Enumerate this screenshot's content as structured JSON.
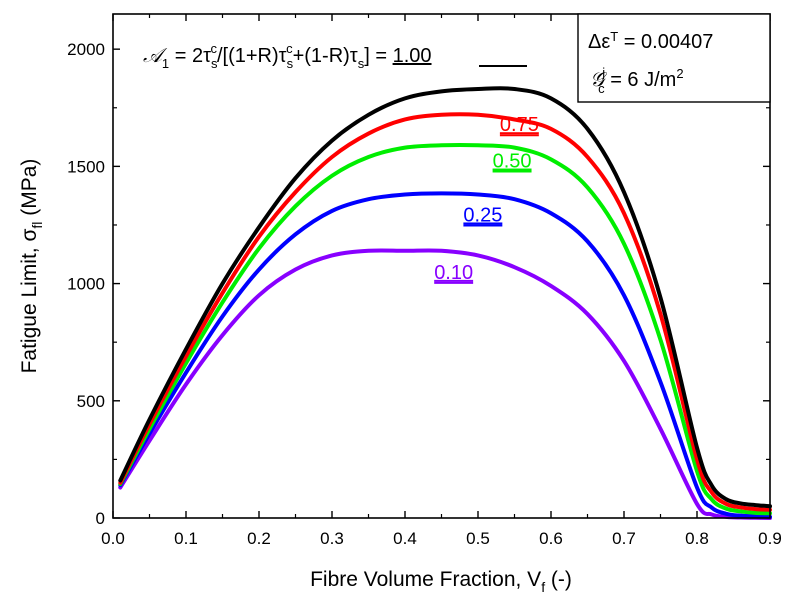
{
  "chart_data": {
    "type": "line",
    "xlabel": "Fibre Volume Fraction, V",
    "xlabel_sub": "f",
    "xlabel_suffix": " (-)",
    "ylabel": "Fatigue Limit, σ",
    "ylabel_sub": "fl",
    "ylabel_suffix": " (MPa)",
    "xlim": [
      0.0,
      0.9
    ],
    "ylim": [
      0,
      2150
    ],
    "xticks": [
      0.0,
      0.1,
      0.2,
      0.3,
      0.4,
      0.5,
      0.6,
      0.7,
      0.8,
      0.9
    ],
    "yticks": [
      0,
      500,
      1000,
      1500,
      2000
    ],
    "grid": false,
    "equation": {
      "lhs": "𝒜",
      "lhs_sub": "1",
      "p1": " = 2τ",
      "s1": "s",
      "c1": "c",
      "p2": "/[(1+R)τ",
      "s2": "s",
      "c2": "c",
      "p3": "+(1-R)τ",
      "s3": "s",
      "p4": "] = ",
      "value": "1.00"
    },
    "params": {
      "line1": "Δε",
      "line1_sup": "T",
      "line1_value": " = 0.00407",
      "line2": "𝒢",
      "line2_sup": "j",
      "line2_sub": "c",
      "line2_value": " = 6 J/m",
      "line2_exp": "2"
    },
    "x": [
      0.01,
      0.05,
      0.1,
      0.15,
      0.2,
      0.25,
      0.3,
      0.35,
      0.4,
      0.45,
      0.5,
      0.55,
      0.6,
      0.65,
      0.7,
      0.75,
      0.8,
      0.82,
      0.84,
      0.86,
      0.88,
      0.9
    ],
    "series": [
      {
        "name": "1.00",
        "color": "#000000",
        "label_pos": [
          0.37,
          1960
        ],
        "values": [
          160,
          420,
          720,
          1000,
          1240,
          1450,
          1610,
          1720,
          1790,
          1820,
          1830,
          1830,
          1790,
          1660,
          1390,
          940,
          300,
          140,
          80,
          62,
          55,
          50
        ]
      },
      {
        "name": "0.75",
        "color": "#ff0000",
        "label_pos": [
          0.53,
          1650
        ],
        "values": [
          150,
          400,
          690,
          960,
          1200,
          1390,
          1540,
          1640,
          1700,
          1720,
          1720,
          1700,
          1660,
          1540,
          1300,
          870,
          250,
          110,
          60,
          45,
          38,
          35
        ]
      },
      {
        "name": "0.50",
        "color": "#00ee00",
        "label_pos": [
          0.52,
          1495
        ],
        "values": [
          145,
          380,
          660,
          920,
          1150,
          1330,
          1460,
          1540,
          1580,
          1590,
          1590,
          1580,
          1530,
          1410,
          1170,
          760,
          200,
          80,
          40,
          28,
          22,
          20
        ]
      },
      {
        "name": "0.25",
        "color": "#0000ff",
        "label_pos": [
          0.48,
          1265
        ],
        "values": [
          140,
          360,
          620,
          860,
          1060,
          1210,
          1310,
          1360,
          1380,
          1385,
          1380,
          1360,
          1300,
          1180,
          950,
          580,
          130,
          45,
          18,
          10,
          8,
          5
        ]
      },
      {
        "name": "0.10",
        "color": "#8800ff",
        "label_pos": [
          0.44,
          1020
        ],
        "values": [
          130,
          330,
          570,
          780,
          950,
          1060,
          1120,
          1140,
          1140,
          1140,
          1120,
          1070,
          990,
          870,
          670,
          380,
          60,
          15,
          5,
          2,
          1,
          0
        ]
      }
    ]
  }
}
